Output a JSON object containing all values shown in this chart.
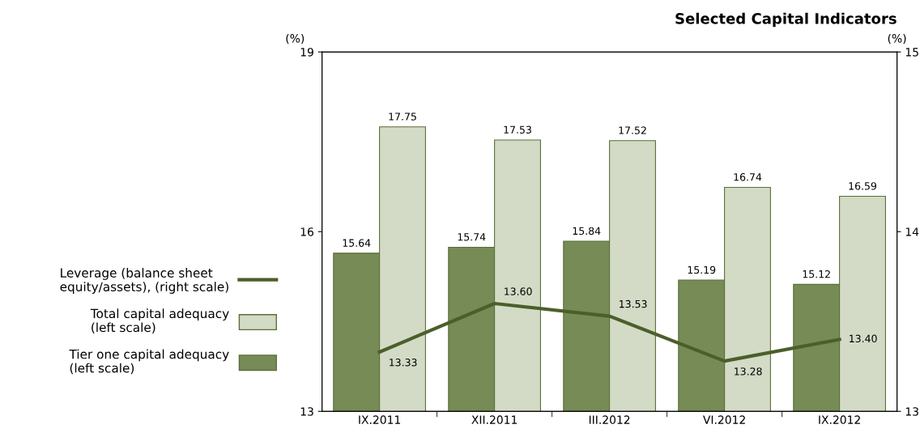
{
  "chart_data": {
    "type": "bar",
    "title": "Selected Capital Indicators",
    "ylabel": "(%)",
    "y2label": "(%)",
    "categories": [
      "IX.2011",
      "XII.2011",
      "III.2012",
      "VI.2012",
      "IX.2012"
    ],
    "series": [
      {
        "name": "Tier one capital adequacy\n(left scale)",
        "color": "#778b56",
        "values": [
          15.64,
          15.74,
          15.84,
          15.19,
          15.12
        ],
        "value_labels": [
          "15.64",
          "15.74",
          "15.84",
          "15.19",
          "15.12"
        ]
      },
      {
        "name": "Total capital adequacy\n(left scale)",
        "color": "#d3dbc6",
        "values": [
          17.75,
          17.53,
          17.52,
          16.74,
          16.59
        ],
        "value_labels": [
          "17.75",
          "17.53",
          "17.52",
          "16.74",
          "16.59"
        ]
      },
      {
        "name": "Leverage (balance sheet\nequity/assets), (right scale)",
        "type": "line",
        "axis": "y2",
        "color": "#4b5f2b",
        "values": [
          13.33,
          13.6,
          13.53,
          13.28,
          13.4
        ],
        "value_labels": [
          "13.33",
          "13.60",
          "13.53",
          "13.28",
          "13.40"
        ]
      }
    ],
    "ylim": [
      13,
      19
    ],
    "yticks": [
      13,
      16,
      19
    ],
    "y2lim": [
      13,
      15
    ],
    "y2ticks": [
      13,
      14,
      15
    ],
    "legend": "left",
    "grid": false
  }
}
